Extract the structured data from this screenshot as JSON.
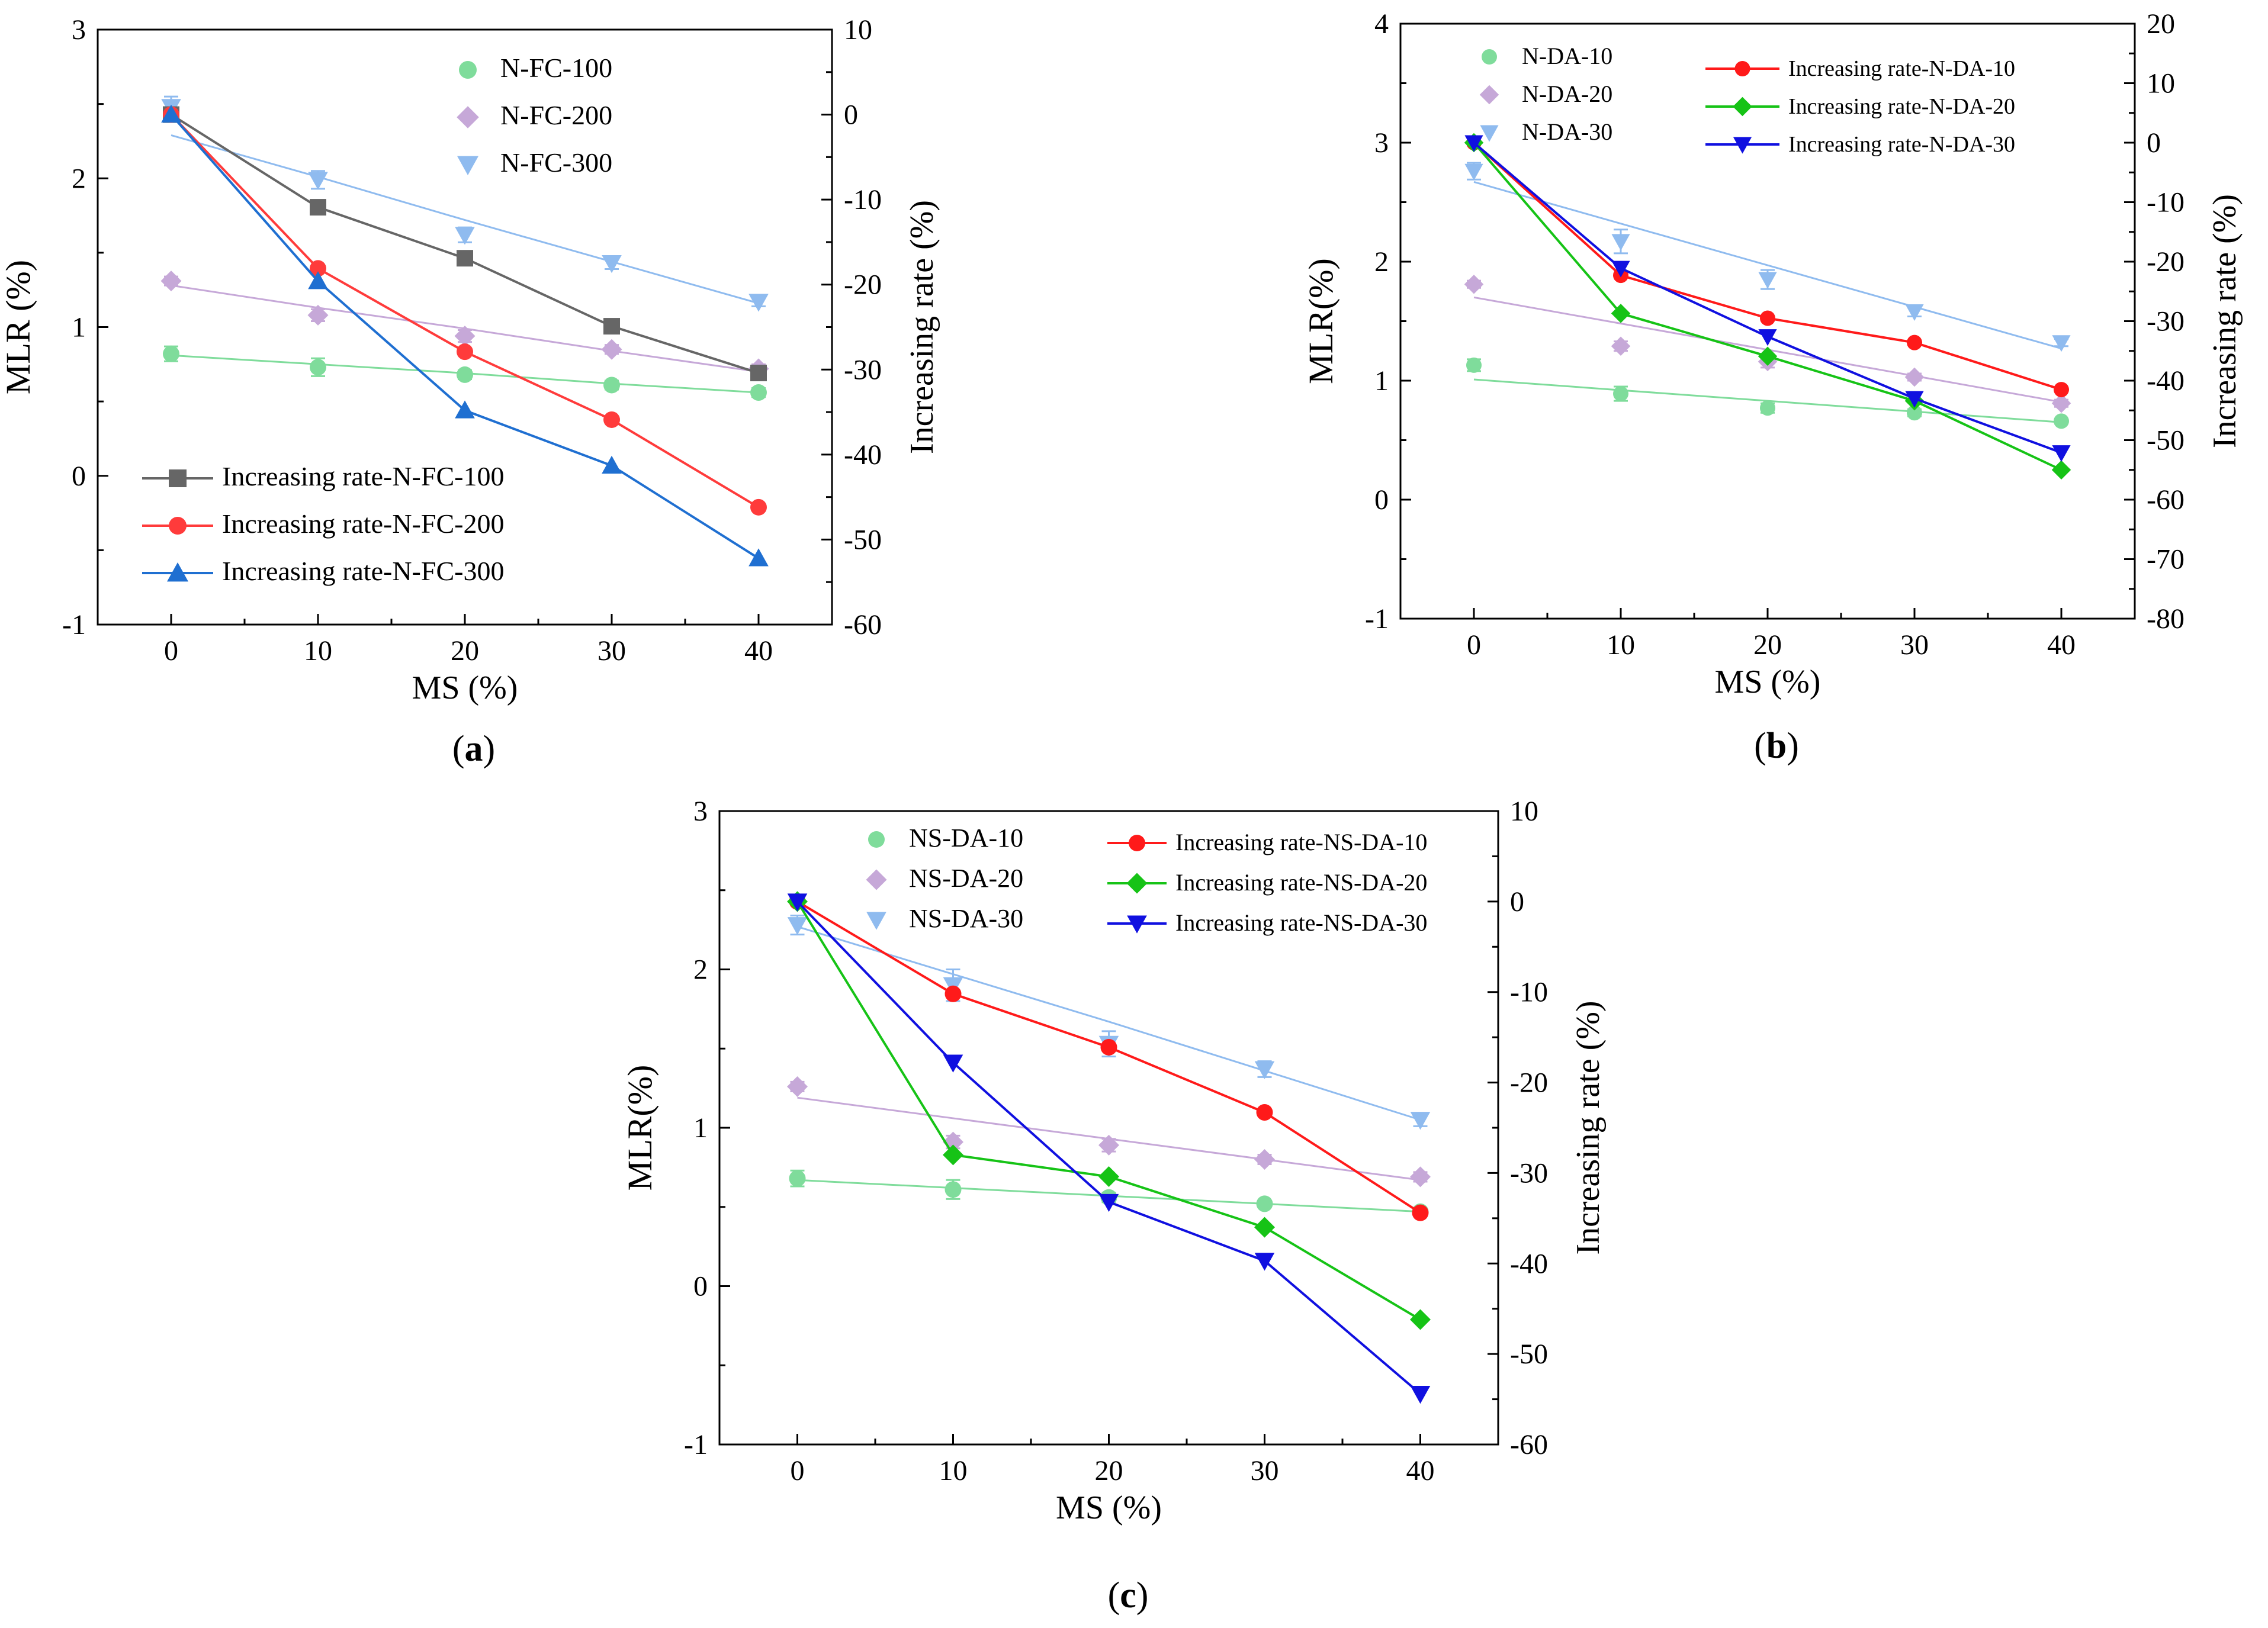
{
  "chart_data": [
    {
      "type": "scatter",
      "panel_label": "a",
      "xlabel": "MS (%)",
      "ylabel": "MLR (%)",
      "y2label": "Increasing rate (%)",
      "x": [
        0,
        10,
        20,
        30,
        40
      ],
      "xticks": [
        "0",
        "10",
        "20",
        "30",
        "40"
      ],
      "xlim": [
        -5,
        45
      ],
      "ylim": [
        -1,
        3
      ],
      "yticks": [
        "-1",
        "0",
        "1",
        "2",
        "3"
      ],
      "y2lim": [
        -60,
        10
      ],
      "y2ticks": [
        "-60",
        "-50",
        "-40",
        "-30",
        "-20",
        "-10",
        "0",
        "10"
      ],
      "legend_mlr_position": "top-right",
      "legend_rate_position": "bottom-left",
      "mlr_series": [
        {
          "name": "N-FC-100",
          "color": "#7fdc9b",
          "marker": "circle",
          "values": [
            0.82,
            0.73,
            0.68,
            0.61,
            0.56
          ],
          "err": [
            0.05,
            0.06,
            0.03,
            0.03,
            0.03
          ],
          "fit": [
            0.81,
            0.75,
            0.69,
            0.62,
            0.56
          ]
        },
        {
          "name": "N-FC-200",
          "color": "#c6a8d8",
          "marker": "diamond",
          "values": [
            1.31,
            1.08,
            0.94,
            0.85,
            0.72
          ],
          "err": [
            0.03,
            0.04,
            0.04,
            0.03,
            0.03
          ],
          "fit": [
            1.28,
            1.13,
            0.99,
            0.84,
            0.7
          ]
        },
        {
          "name": "N-FC-300",
          "color": "#8fbbef",
          "marker": "triangle-down",
          "values": [
            2.48,
            1.99,
            1.62,
            1.43,
            1.17
          ],
          "err": [
            0.07,
            0.06,
            0.05,
            0.04,
            0.03
          ],
          "fit": [
            2.29,
            2.01,
            1.72,
            1.44,
            1.16
          ]
        }
      ],
      "rate_series": [
        {
          "name": "Increasing rate-N-FC-100",
          "color": "#666666",
          "marker": "square",
          "values": [
            0,
            -10.9,
            -16.9,
            -24.9,
            -30.4
          ]
        },
        {
          "name": "Increasing rate-N-FC-200",
          "color": "#ff3b3b",
          "marker": "circle",
          "values": [
            0,
            -18.1,
            -27.9,
            -35.9,
            -46.2
          ]
        },
        {
          "name": "Increasing rate-N-FC-300",
          "color": "#1f6fd1",
          "marker": "triangle-up",
          "values": [
            0,
            -19.6,
            -34.8,
            -41.3,
            -52.2
          ]
        }
      ]
    },
    {
      "type": "scatter",
      "panel_label": "b",
      "xlabel": "MS (%)",
      "ylabel": "MLR(%)",
      "y2label": "Increasing rate (%)",
      "x": [
        0,
        10,
        20,
        30,
        40
      ],
      "xticks": [
        "0",
        "10",
        "20",
        "30",
        "40"
      ],
      "xlim": [
        -5,
        45
      ],
      "ylim": [
        -1,
        4
      ],
      "yticks": [
        "-1",
        "0",
        "1",
        "2",
        "3",
        "4"
      ],
      "y2lim": [
        -80,
        20
      ],
      "y2ticks": [
        "-80",
        "-70",
        "-60",
        "-50",
        "-40",
        "-30",
        "-20",
        "-10",
        "0",
        "10",
        "20"
      ],
      "legend_mlr_position": "top-left",
      "legend_rate_position": "top-center",
      "mlr_series": [
        {
          "name": "N-DA-10",
          "color": "#7fdc9b",
          "marker": "circle",
          "values": [
            1.13,
            0.89,
            0.77,
            0.73,
            0.66
          ],
          "err": [
            0.05,
            0.06,
            0.04,
            0.03,
            0.02
          ],
          "fit": [
            1.01,
            0.92,
            0.83,
            0.74,
            0.65
          ]
        },
        {
          "name": "N-DA-20",
          "color": "#c6a8d8",
          "marker": "diamond",
          "values": [
            1.81,
            1.29,
            1.16,
            1.03,
            0.81
          ],
          "err": [
            0.03,
            0.04,
            0.05,
            0.03,
            0.03
          ],
          "fit": [
            1.7,
            1.48,
            1.26,
            1.04,
            0.82
          ]
        },
        {
          "name": "N-DA-30",
          "color": "#8fbbef",
          "marker": "triangle-down",
          "values": [
            2.76,
            2.17,
            1.85,
            1.58,
            1.32
          ],
          "err": [
            0.07,
            0.1,
            0.08,
            0.04,
            0.03
          ],
          "fit": [
            2.67,
            2.32,
            1.97,
            1.62,
            1.27
          ]
        }
      ],
      "rate_series": [
        {
          "name": "Increasing rate-N-DA-10",
          "color": "#ff1a1a",
          "marker": "circle",
          "values": [
            0,
            -22.3,
            -29.5,
            -33.6,
            -41.5
          ]
        },
        {
          "name": "Increasing rate-N-DA-20",
          "color": "#16c316",
          "marker": "diamond",
          "values": [
            0,
            -28.7,
            -35.9,
            -43.4,
            -55.0
          ]
        },
        {
          "name": "Increasing rate-N-DA-30",
          "color": "#1010e0",
          "marker": "triangle-down",
          "values": [
            0,
            -21.1,
            -32.6,
            -43.0,
            -52.1
          ]
        }
      ]
    },
    {
      "type": "scatter",
      "panel_label": "c",
      "xlabel": "MS (%)",
      "ylabel": "MLR(%)",
      "y2label": "Increasing rate (%)",
      "x": [
        0,
        10,
        20,
        30,
        40
      ],
      "xticks": [
        "0",
        "10",
        "20",
        "30",
        "40"
      ],
      "xlim": [
        -5,
        45
      ],
      "ylim": [
        -1,
        3
      ],
      "yticks": [
        "-1",
        "0",
        "1",
        "2",
        "3"
      ],
      "y2lim": [
        -60,
        10
      ],
      "y2ticks": [
        "-60",
        "-50",
        "-40",
        "-30",
        "-20",
        "-10",
        "0",
        "10"
      ],
      "legend_mlr_position": "top-left",
      "legend_rate_position": "top-right",
      "mlr_series": [
        {
          "name": "NS-DA-10",
          "color": "#7fdc9b",
          "marker": "circle",
          "values": [
            0.68,
            0.61,
            0.56,
            0.52,
            0.47
          ],
          "err": [
            0.05,
            0.06,
            0.03,
            0.02,
            0.02
          ],
          "fit": [
            0.67,
            0.62,
            0.57,
            0.52,
            0.47
          ]
        },
        {
          "name": "NS-DA-20",
          "color": "#c6a8d8",
          "marker": "diamond",
          "values": [
            1.26,
            0.91,
            0.89,
            0.8,
            0.69
          ],
          "err": [
            0.03,
            0.04,
            0.04,
            0.03,
            0.03
          ],
          "fit": [
            1.19,
            1.06,
            0.93,
            0.8,
            0.67
          ]
        },
        {
          "name": "NS-DA-30",
          "color": "#8fbbef",
          "marker": "triangle-down",
          "values": [
            2.28,
            1.9,
            1.53,
            1.37,
            1.05
          ],
          "err": [
            0.06,
            0.1,
            0.08,
            0.05,
            0.04
          ],
          "fit": [
            2.27,
            1.97,
            1.67,
            1.36,
            1.05
          ]
        }
      ],
      "rate_series": [
        {
          "name": "Increasing rate-NS-DA-10",
          "color": "#ff1a1a",
          "marker": "circle",
          "values": [
            0,
            -10.2,
            -16.1,
            -23.3,
            -34.4
          ]
        },
        {
          "name": "Increasing rate-NS-DA-20",
          "color": "#16c316",
          "marker": "diamond",
          "values": [
            0,
            -28.0,
            -30.4,
            -36.0,
            -46.2
          ]
        },
        {
          "name": "Increasing rate-NS-DA-30",
          "color": "#1010e0",
          "marker": "triangle-down",
          "values": [
            0,
            -17.8,
            -33.2,
            -39.7,
            -54.4
          ]
        }
      ]
    }
  ]
}
